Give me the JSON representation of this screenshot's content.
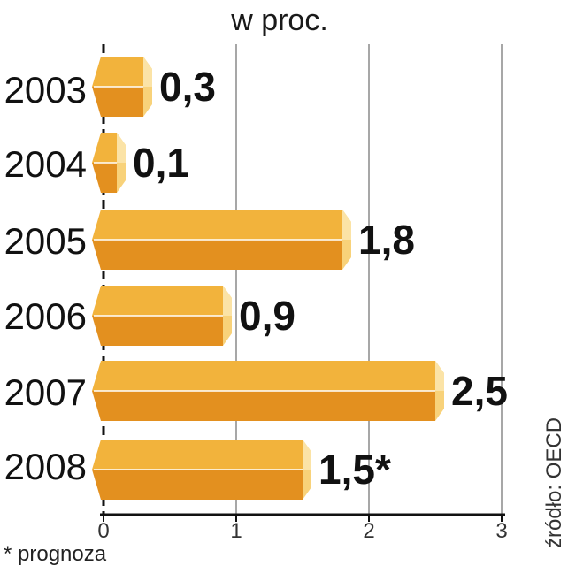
{
  "chart_data": {
    "type": "bar",
    "orientation": "horizontal",
    "unit_label": "w proc.",
    "categories": [
      "2003",
      "2004",
      "2005",
      "2006",
      "2007",
      "2008"
    ],
    "values": [
      0.3,
      0.1,
      1.8,
      0.9,
      2.5,
      1.5
    ],
    "value_labels": [
      "0,3",
      "0,1",
      "1,8",
      "0,9",
      "2,5",
      "1,5*"
    ],
    "xlim": [
      0,
      3
    ],
    "ticks": [
      0,
      1,
      2,
      3
    ],
    "tick_labels": [
      "0",
      "1",
      "2",
      "3"
    ],
    "grid": true,
    "footnote": "* prognoza",
    "source": "źródło: OECD",
    "colors": {
      "bar_top": "#f2b33c",
      "bar_bottom": "#e3901f",
      "bar_end": "#f8d27a",
      "bar_end_light": "#fbe3a6",
      "grid": "#8a8a8a",
      "axis": "#111111"
    }
  }
}
